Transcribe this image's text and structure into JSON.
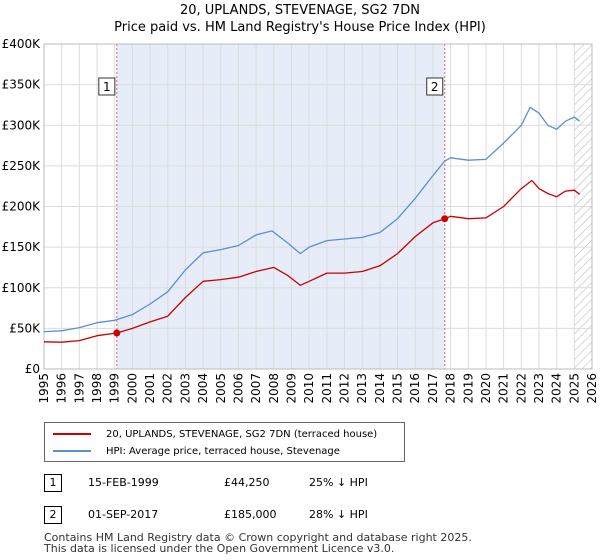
{
  "chart_data": {
    "type": "line",
    "title": "20, UPLANDS, STEVENAGE, SG2 7DN",
    "subtitle": "Price paid vs. HM Land Registry's House Price Index (HPI)",
    "ylim": [
      0,
      400000
    ],
    "xlim": [
      1995,
      2026
    ],
    "y_ticks": [
      {
        "value": 0,
        "label": "£0"
      },
      {
        "value": 50000,
        "label": "£50K"
      },
      {
        "value": 100000,
        "label": "£100K"
      },
      {
        "value": 150000,
        "label": "£150K"
      },
      {
        "value": 200000,
        "label": "£200K"
      },
      {
        "value": 250000,
        "label": "£250K"
      },
      {
        "value": 300000,
        "label": "£300K"
      },
      {
        "value": 350000,
        "label": "£350K"
      },
      {
        "value": 400000,
        "label": "£400K"
      }
    ],
    "x_ticks": [
      "1995",
      "1996",
      "1997",
      "1998",
      "1999",
      "2000",
      "2001",
      "2002",
      "2003",
      "2004",
      "2005",
      "2006",
      "2007",
      "2008",
      "2009",
      "2010",
      "2011",
      "2012",
      "2013",
      "2014",
      "2015",
      "2016",
      "2017",
      "2018",
      "2019",
      "2020",
      "2021",
      "2022",
      "2023",
      "2024",
      "2025",
      "2026"
    ],
    "grid": true,
    "shaded_range": [
      1999.12,
      2017.67
    ],
    "future_hatch_from": 2025.0,
    "series": [
      {
        "name": "20, UPLANDS, STEVENAGE, SG2 7DN (terraced house)",
        "color": "#cc0000",
        "points": [
          [
            1995,
            33500
          ],
          [
            1996,
            33000
          ],
          [
            1997,
            35000
          ],
          [
            1998,
            41000
          ],
          [
            1999.12,
            44250
          ],
          [
            2000,
            50000
          ],
          [
            2001,
            58000
          ],
          [
            2002,
            65000
          ],
          [
            2003,
            88000
          ],
          [
            2004,
            108000
          ],
          [
            2005,
            110000
          ],
          [
            2006,
            113000
          ],
          [
            2007,
            120000
          ],
          [
            2008,
            125000
          ],
          [
            2008.8,
            115000
          ],
          [
            2009.5,
            103000
          ],
          [
            2010,
            108000
          ],
          [
            2011,
            118000
          ],
          [
            2012,
            118000
          ],
          [
            2013,
            120000
          ],
          [
            2014,
            127000
          ],
          [
            2015,
            142000
          ],
          [
            2016,
            163000
          ],
          [
            2017,
            180000
          ],
          [
            2017.67,
            185000
          ],
          [
            2018,
            188000
          ],
          [
            2019,
            185000
          ],
          [
            2020,
            186000
          ],
          [
            2021,
            200000
          ],
          [
            2022,
            222000
          ],
          [
            2022.6,
            232000
          ],
          [
            2023,
            222000
          ],
          [
            2023.5,
            216000
          ],
          [
            2024,
            212000
          ],
          [
            2024.5,
            219000
          ],
          [
            2025,
            220000
          ],
          [
            2025.3,
            215000
          ]
        ]
      },
      {
        "name": "HPI: Average price, terraced house, Stevenage",
        "color": "#5b8fd4",
        "points": [
          [
            1995,
            46000
          ],
          [
            1996,
            47000
          ],
          [
            1997,
            51000
          ],
          [
            1998,
            57000
          ],
          [
            1999,
            60000
          ],
          [
            2000,
            67000
          ],
          [
            2001,
            80000
          ],
          [
            2002,
            95000
          ],
          [
            2003,
            122000
          ],
          [
            2004,
            143000
          ],
          [
            2005,
            147000
          ],
          [
            2006,
            152000
          ],
          [
            2007,
            165000
          ],
          [
            2007.9,
            170000
          ],
          [
            2008.8,
            155000
          ],
          [
            2009.5,
            142000
          ],
          [
            2010,
            150000
          ],
          [
            2011,
            158000
          ],
          [
            2012,
            160000
          ],
          [
            2013,
            162000
          ],
          [
            2014,
            168000
          ],
          [
            2015,
            185000
          ],
          [
            2016,
            210000
          ],
          [
            2017,
            238000
          ],
          [
            2017.67,
            256000
          ],
          [
            2018,
            260000
          ],
          [
            2019,
            257000
          ],
          [
            2020,
            258000
          ],
          [
            2021,
            278000
          ],
          [
            2022,
            300000
          ],
          [
            2022.5,
            322000
          ],
          [
            2023,
            315000
          ],
          [
            2023.5,
            300000
          ],
          [
            2024,
            295000
          ],
          [
            2024.5,
            305000
          ],
          [
            2025,
            310000
          ],
          [
            2025.3,
            305000
          ]
        ]
      }
    ],
    "markers": [
      {
        "label": "1",
        "date": 1999.12,
        "value": 44250
      },
      {
        "label": "2",
        "date": 2017.67,
        "value": 185000
      }
    ]
  },
  "legend": {
    "items": [
      {
        "label": "20, UPLANDS, STEVENAGE, SG2 7DN (terraced house)",
        "color": "#cc0000"
      },
      {
        "label": "HPI: Average price, terraced house, Stevenage",
        "color": "#5b8fd4"
      }
    ]
  },
  "transactions": [
    {
      "num": "1",
      "date": "15-FEB-1999",
      "price": "£44,250",
      "hpi": "25% ↓ HPI"
    },
    {
      "num": "2",
      "date": "01-SEP-2017",
      "price": "£185,000",
      "hpi": "28% ↓ HPI"
    }
  ],
  "footer": {
    "line1": "Contains HM Land Registry data © Crown copyright and database right 2025.",
    "line2": "This data is licensed under the Open Government Licence v3.0."
  }
}
